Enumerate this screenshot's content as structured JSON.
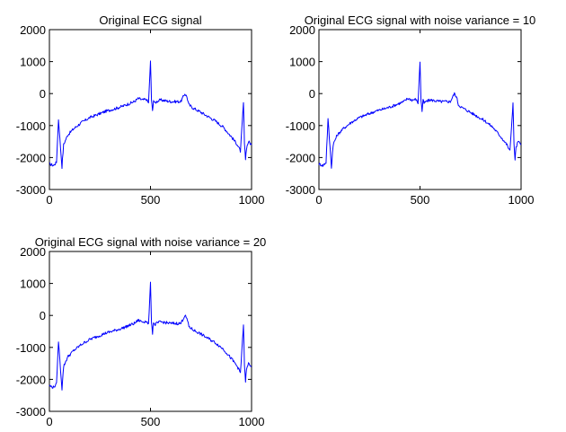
{
  "chart_data": [
    {
      "type": "line",
      "title": "Original ECG signal",
      "xlim": [
        0,
        1000
      ],
      "ylim": [
        -3000,
        2000
      ],
      "xticks": [
        "0",
        "500",
        "1000"
      ],
      "yticks": [
        "2000",
        "1000",
        "0",
        "-1000",
        "-2000",
        "-3000"
      ],
      "line_color": "#0000ff",
      "series": [
        {
          "x": [
            0,
            20,
            35,
            45,
            55,
            62,
            70,
            90,
            120,
            160,
            200,
            240,
            280,
            320,
            360,
            400,
            420,
            440,
            460,
            480,
            490,
            500,
            505,
            510,
            515,
            520,
            530,
            550,
            600,
            650,
            670,
            680,
            690,
            710,
            740,
            780,
            820,
            860,
            900,
            930,
            945,
            955,
            960,
            965,
            970,
            975,
            985,
            1000
          ],
          "y": [
            -2200,
            -2250,
            -2150,
            -800,
            -1700,
            -2300,
            -1600,
            -1300,
            -1100,
            -900,
            -750,
            -650,
            -550,
            -480,
            -400,
            -300,
            -250,
            -150,
            -200,
            -180,
            -300,
            1000,
            -200,
            -550,
            -200,
            -300,
            -250,
            -200,
            -250,
            -250,
            0,
            -100,
            -350,
            -450,
            -550,
            -700,
            -850,
            -1050,
            -1350,
            -1600,
            -1800,
            -800,
            -300,
            -1600,
            -2050,
            -1700,
            -1500,
            -1600
          ]
        }
      ]
    },
    {
      "type": "line",
      "title": "Original ECG signal with noise variance = 10",
      "xlim": [
        0,
        1000
      ],
      "ylim": [
        -3000,
        2000
      ],
      "xticks": [
        "0",
        "500",
        "1000"
      ],
      "yticks": [
        "2000",
        "1000",
        "0",
        "-1000",
        "-2000",
        "-3000"
      ],
      "line_color": "#0000ff",
      "series": [
        {
          "x": [
            0,
            20,
            35,
            45,
            55,
            62,
            70,
            90,
            120,
            160,
            200,
            240,
            280,
            320,
            360,
            400,
            420,
            440,
            460,
            480,
            490,
            500,
            505,
            510,
            515,
            520,
            530,
            550,
            600,
            650,
            670,
            680,
            690,
            710,
            740,
            780,
            820,
            860,
            900,
            930,
            945,
            955,
            960,
            965,
            970,
            975,
            985,
            1000
          ],
          "y": [
            -2200,
            -2250,
            -2150,
            -800,
            -1700,
            -2300,
            -1600,
            -1300,
            -1100,
            -900,
            -750,
            -650,
            -550,
            -480,
            -400,
            -300,
            -250,
            -150,
            -200,
            -180,
            -300,
            1000,
            -200,
            -550,
            -200,
            -300,
            -250,
            -200,
            -250,
            -250,
            0,
            -100,
            -350,
            -450,
            -550,
            -700,
            -850,
            -1050,
            -1350,
            -1600,
            -1800,
            -800,
            -300,
            -1600,
            -2050,
            -1700,
            -1500,
            -1600
          ]
        }
      ]
    },
    {
      "type": "line",
      "title": "Original ECG signal with noise variance = 20",
      "xlim": [
        0,
        1000
      ],
      "ylim": [
        -3000,
        2000
      ],
      "xticks": [
        "0",
        "500",
        "1000"
      ],
      "yticks": [
        "2000",
        "1000",
        "0",
        "-1000",
        "-2000",
        "-3000"
      ],
      "line_color": "#0000ff",
      "series": [
        {
          "x": [
            0,
            20,
            35,
            45,
            55,
            62,
            70,
            90,
            120,
            160,
            200,
            240,
            280,
            320,
            360,
            400,
            420,
            440,
            460,
            480,
            490,
            500,
            505,
            510,
            515,
            520,
            530,
            550,
            600,
            650,
            670,
            680,
            690,
            710,
            740,
            780,
            820,
            860,
            900,
            930,
            945,
            955,
            960,
            965,
            970,
            975,
            985,
            1000
          ],
          "y": [
            -2200,
            -2250,
            -2150,
            -800,
            -1700,
            -2300,
            -1600,
            -1300,
            -1100,
            -900,
            -750,
            -650,
            -550,
            -480,
            -400,
            -300,
            -250,
            -150,
            -200,
            -180,
            -300,
            1000,
            -200,
            -550,
            -200,
            -300,
            -250,
            -200,
            -250,
            -250,
            0,
            -100,
            -350,
            -450,
            -550,
            -700,
            -850,
            -1050,
            -1350,
            -1600,
            -1800,
            -800,
            -300,
            -1600,
            -2050,
            -1700,
            -1500,
            -1600
          ]
        }
      ]
    }
  ]
}
